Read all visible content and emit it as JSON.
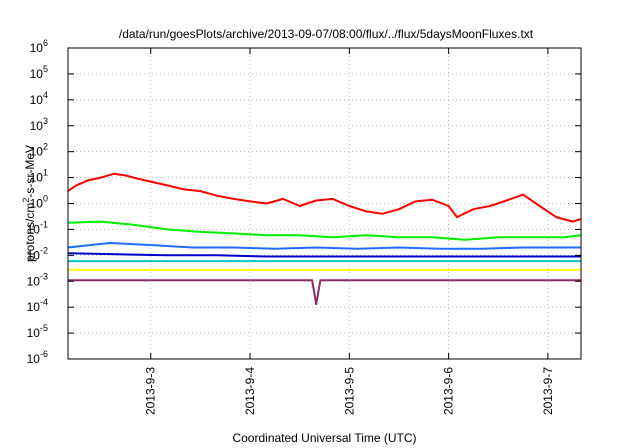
{
  "chart_data": {
    "type": "line",
    "title": "/data/run/goesPlots/archive/2013-09-07/08:00/flux/../flux/5daysMoonFluxes.txt",
    "xlabel": "Coordinated Universal Time (UTC)",
    "ylabel": "protons/cm2-s-sr-MeV",
    "ylabel_parts": {
      "pre": "protons/cm",
      "sup": "2",
      "post": "-s-sr-MeV"
    },
    "y_scale": "log",
    "ylim": [
      1e-06,
      1000000.0
    ],
    "xlim": [
      "2013-09-02T04:00",
      "2013-09-07T08:00"
    ],
    "grid": true,
    "y_ticks": [
      {
        "base": "10",
        "exp": "-6",
        "value": 1e-06
      },
      {
        "base": "10",
        "exp": "-5",
        "value": 1e-05
      },
      {
        "base": "10",
        "exp": "-4",
        "value": 0.0001
      },
      {
        "base": "10",
        "exp": "-3",
        "value": 0.001
      },
      {
        "base": "10",
        "exp": "-2",
        "value": 0.01
      },
      {
        "base": "10",
        "exp": "-1",
        "value": 0.1
      },
      {
        "base": "10",
        "exp": "0",
        "value": 1.0
      },
      {
        "base": "10",
        "exp": "1",
        "value": 10.0
      },
      {
        "base": "10",
        "exp": "2",
        "value": 100.0
      },
      {
        "base": "10",
        "exp": "3",
        "value": 1000.0
      },
      {
        "base": "10",
        "exp": "4",
        "value": 10000.0
      },
      {
        "base": "10",
        "exp": "5",
        "value": 100000.0
      },
      {
        "base": "10",
        "exp": "6",
        "value": 1000000.0
      }
    ],
    "x_ticks": [
      {
        "label": "2013-9-3",
        "date": "2013-09-03T00:00"
      },
      {
        "label": "2013-9-4",
        "date": "2013-09-04T00:00"
      },
      {
        "label": "2013-9-5",
        "date": "2013-09-05T00:00"
      },
      {
        "label": "2013-9-6",
        "date": "2013-09-06T00:00"
      },
      {
        "label": "2013-9-7",
        "date": "2013-09-07T00:00"
      }
    ],
    "series": [
      {
        "color": "#ff0000",
        "x": [
          "2013-09-02T04:00",
          "2013-09-02T06:00",
          "2013-09-02T09:00",
          "2013-09-02T12:00",
          "2013-09-02T15:00",
          "2013-09-02T18:00",
          "2013-09-02T21:00",
          "2013-09-03T00:00",
          "2013-09-03T04:00",
          "2013-09-03T08:00",
          "2013-09-03T12:00",
          "2013-09-03T16:00",
          "2013-09-03T20:00",
          "2013-09-04T00:00",
          "2013-09-04T04:00",
          "2013-09-04T08:00",
          "2013-09-04T12:00",
          "2013-09-04T16:00",
          "2013-09-04T20:00",
          "2013-09-05T00:00",
          "2013-09-05T04:00",
          "2013-09-05T08:00",
          "2013-09-05T12:00",
          "2013-09-05T16:00",
          "2013-09-05T20:00",
          "2013-09-06T00:00",
          "2013-09-06T02:00",
          "2013-09-06T06:00",
          "2013-09-06T10:00",
          "2013-09-06T14:00",
          "2013-09-06T18:00",
          "2013-09-06T22:00",
          "2013-09-07T02:00",
          "2013-09-07T06:00",
          "2013-09-07T08:00"
        ],
        "values": [
          3,
          5,
          8,
          10,
          14,
          12,
          9,
          7,
          5,
          3.5,
          3,
          2,
          1.5,
          1.2,
          1,
          1.5,
          0.8,
          1.3,
          1.5,
          0.8,
          0.5,
          0.4,
          0.6,
          1.2,
          1.4,
          0.8,
          0.3,
          0.6,
          0.8,
          1.3,
          2.2,
          0.8,
          0.3,
          0.2,
          0.25
        ]
      },
      {
        "color": "#00ee00",
        "x": [
          "2013-09-02T04:00",
          "2013-09-02T12:00",
          "2013-09-02T20:00",
          "2013-09-03T04:00",
          "2013-09-03T12:00",
          "2013-09-03T20:00",
          "2013-09-04T04:00",
          "2013-09-04T12:00",
          "2013-09-04T20:00",
          "2013-09-05T04:00",
          "2013-09-05T12:00",
          "2013-09-05T20:00",
          "2013-09-06T04:00",
          "2013-09-06T12:00",
          "2013-09-06T20:00",
          "2013-09-07T04:00",
          "2013-09-07T08:00"
        ],
        "values": [
          0.18,
          0.2,
          0.15,
          0.1,
          0.08,
          0.07,
          0.06,
          0.06,
          0.05,
          0.06,
          0.05,
          0.05,
          0.04,
          0.05,
          0.05,
          0.05,
          0.06
        ]
      },
      {
        "color": "#1e6eff",
        "x": [
          "2013-09-02T04:00",
          "2013-09-02T14:00",
          "2013-09-03T00:00",
          "2013-09-03T10:00",
          "2013-09-03T20:00",
          "2013-09-04T06:00",
          "2013-09-04T16:00",
          "2013-09-05T02:00",
          "2013-09-05T12:00",
          "2013-09-05T22:00",
          "2013-09-06T08:00",
          "2013-09-06T18:00",
          "2013-09-07T04:00",
          "2013-09-07T08:00"
        ],
        "values": [
          0.02,
          0.03,
          0.025,
          0.02,
          0.02,
          0.018,
          0.02,
          0.018,
          0.02,
          0.018,
          0.018,
          0.02,
          0.02,
          0.02
        ]
      },
      {
        "color": "#0000cc",
        "x": [
          "2013-09-02T04:00",
          "2013-09-02T16:00",
          "2013-09-03T04:00",
          "2013-09-03T16:00",
          "2013-09-04T04:00",
          "2013-09-04T16:00",
          "2013-09-05T04:00",
          "2013-09-05T16:00",
          "2013-09-06T04:00",
          "2013-09-06T16:00",
          "2013-09-07T04:00",
          "2013-09-07T08:00"
        ],
        "values": [
          0.012,
          0.011,
          0.01,
          0.01,
          0.009,
          0.009,
          0.009,
          0.009,
          0.009,
          0.009,
          0.009,
          0.009
        ]
      },
      {
        "color": "#00c8c8",
        "x": [
          "2013-09-02T04:00",
          "2013-09-03T04:00",
          "2013-09-04T04:00",
          "2013-09-05T04:00",
          "2013-09-06T04:00",
          "2013-09-07T04:00",
          "2013-09-07T08:00"
        ],
        "values": [
          0.006,
          0.006,
          0.006,
          0.006,
          0.006,
          0.006,
          0.006
        ]
      },
      {
        "color": "#ffff00",
        "x": [
          "2013-09-02T04:00",
          "2013-09-03T04:00",
          "2013-09-04T04:00",
          "2013-09-05T04:00",
          "2013-09-06T04:00",
          "2013-09-07T04:00",
          "2013-09-07T08:00"
        ],
        "values": [
          0.0028,
          0.0028,
          0.0028,
          0.0028,
          0.0028,
          0.0028,
          0.0028
        ]
      },
      {
        "color": "#8b2b6b",
        "x": [
          "2013-09-02T04:00",
          "2013-09-03T04:00",
          "2013-09-04T04:00",
          "2013-09-04T15:00",
          "2013-09-04T16:00",
          "2013-09-04T17:00",
          "2013-09-05T04:00",
          "2013-09-06T04:00",
          "2013-09-07T04:00",
          "2013-09-07T08:00"
        ],
        "values": [
          0.0011,
          0.0011,
          0.0011,
          0.0011,
          0.00013,
          0.0011,
          0.0011,
          0.0011,
          0.0011,
          0.0011
        ]
      }
    ]
  }
}
